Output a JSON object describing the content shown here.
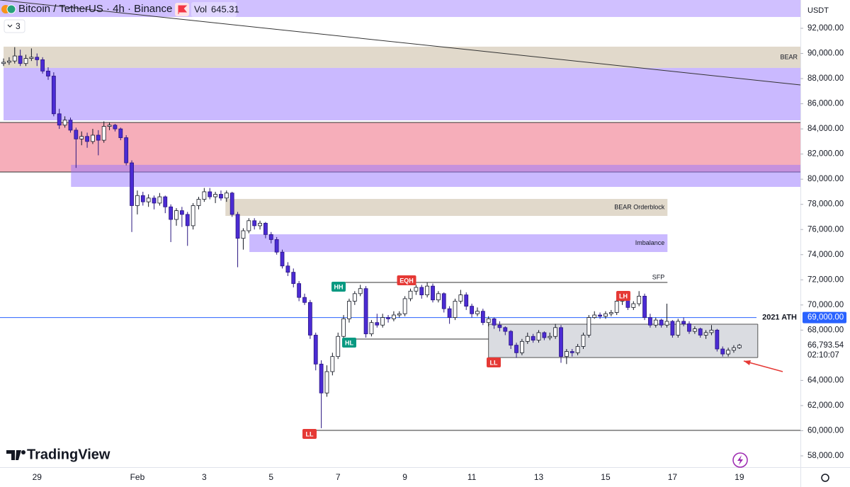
{
  "chart_data": {
    "type": "candlestick",
    "title": "Bitcoin / TetherUS · 4h · Binance",
    "volume_prefix": "Vol",
    "volume": 645.31,
    "indicator_count": 3,
    "currency": "USDT",
    "brand": "TradingView",
    "countdown": "02:10:07",
    "up_color": "#ffffff",
    "down_color": "#4b2bd4",
    "xlim": [
      -0.64,
      142.95
    ],
    "ylim": [
      57100,
      94250
    ],
    "xticks": [
      {
        "value": 6,
        "label": "29"
      },
      {
        "value": 24,
        "label": "Feb"
      },
      {
        "value": 36,
        "label": "3"
      },
      {
        "value": 48,
        "label": "5"
      },
      {
        "value": 60,
        "label": "7"
      },
      {
        "value": 72,
        "label": "9"
      },
      {
        "value": 84,
        "label": "11"
      },
      {
        "value": 96,
        "label": "13"
      },
      {
        "value": 108,
        "label": "15"
      },
      {
        "value": 120,
        "label": "17"
      },
      {
        "value": 132,
        "label": "19"
      }
    ],
    "yticks": [
      {
        "value": 58000,
        "label": "58,000.00"
      },
      {
        "value": 60000,
        "label": "60,000.00"
      },
      {
        "value": 62000,
        "label": "62,000.00"
      },
      {
        "value": 64000,
        "label": "64,000.00"
      },
      {
        "value": 68000,
        "label": "68,000.00"
      },
      {
        "value": 70000,
        "label": "70,000.00"
      },
      {
        "value": 72000,
        "label": "72,000.00"
      },
      {
        "value": 74000,
        "label": "74,000.00"
      },
      {
        "value": 76000,
        "label": "76,000.00"
      },
      {
        "value": 78000,
        "label": "78,000.00"
      },
      {
        "value": 80000,
        "label": "80,000.00"
      },
      {
        "value": 82000,
        "label": "82,000.00"
      },
      {
        "value": 84000,
        "label": "84,000.00"
      },
      {
        "value": 86000,
        "label": "86,000.00"
      },
      {
        "value": 88000,
        "label": "88,000.00"
      },
      {
        "value": 90000,
        "label": "90,000.00"
      },
      {
        "value": 92000,
        "label": "92,000.00"
      }
    ],
    "last_price": {
      "value": 66793.54,
      "label": "66,793.54"
    },
    "ath": {
      "value": 69000,
      "label": "69,000.00",
      "text": "2021 ATH",
      "color": "#2962ff"
    },
    "zones": [
      {
        "y": [
          92900,
          94250
        ],
        "x": [
          -0.64,
          142.95
        ],
        "color": "rgba(150,115,255,0.45)"
      },
      {
        "y": [
          88850,
          90540
        ],
        "x": [
          0,
          142.95
        ],
        "color": "rgba(200,185,160,0.55)",
        "label": "BEAR"
      },
      {
        "y": [
          84680,
          88850
        ],
        "x": [
          0,
          142.95
        ],
        "color": "rgba(150,115,255,0.5)"
      },
      {
        "y": [
          80570,
          84510
        ],
        "x": [
          -0.64,
          142.95
        ],
        "color": "rgba(240,120,140,0.6)",
        "border": "#333333"
      },
      {
        "y": [
          79390,
          81140
        ],
        "x": [
          12.1,
          142.95
        ],
        "color": "rgba(150,115,255,0.5)"
      },
      {
        "y": [
          77080,
          78430
        ],
        "x": [
          39.8,
          119.1
        ],
        "color": "rgba(200,185,160,0.55)",
        "label": "BEAR Orderblock"
      },
      {
        "y": [
          74210,
          75620
        ],
        "x": [
          44.1,
          119.1
        ],
        "color": "rgba(150,115,255,0.5)",
        "label": "Imbalance"
      },
      {
        "y": [
          65820,
          68470
        ],
        "x": [
          87,
          135.3
        ],
        "color": "rgba(150,155,170,0.35)",
        "border": "#555555"
      }
    ],
    "hlines": [
      {
        "value": 71790,
        "x": [
          61.2,
          119.1
        ],
        "label": "SFP"
      },
      {
        "value": 67290,
        "x": [
          61.2,
          87
        ]
      },
      {
        "value": 60030,
        "x": [
          54,
          142.95
        ]
      }
    ],
    "badges": [
      {
        "text": "HH",
        "color": "#089981"
      },
      {
        "text": "EQH",
        "color": "#e53935"
      },
      {
        "text": "HL",
        "color": "#089981"
      },
      {
        "text": "LL",
        "color": "#e53935"
      },
      {
        "text": "LH",
        "color": "#e53935"
      },
      {
        "text": "LL",
        "color": "#e53935"
      }
    ],
    "candles": [
      [
        89200,
        89600,
        89000,
        89300
      ],
      [
        89300,
        89700,
        89100,
        89400
      ],
      [
        89400,
        90500,
        89200,
        89800
      ],
      [
        89800,
        90300,
        89000,
        89200
      ],
      [
        89200,
        89900,
        89000,
        89600
      ],
      [
        89600,
        90400,
        89400,
        89700
      ],
      [
        89700,
        90000,
        89000,
        89500
      ],
      [
        89500,
        89700,
        88400,
        88600
      ],
      [
        88600,
        88900,
        87900,
        88200
      ],
      [
        88200,
        88500,
        85000,
        85200
      ],
      [
        85200,
        85600,
        84000,
        84300
      ],
      [
        84300,
        85000,
        84100,
        84700
      ],
      [
        84700,
        84900,
        83700,
        83900
      ],
      [
        83900,
        84100,
        80900,
        83200
      ],
      [
        83200,
        83800,
        82700,
        83400
      ],
      [
        83400,
        83700,
        82500,
        83000
      ],
      [
        83000,
        84000,
        82800,
        83500
      ],
      [
        83500,
        83900,
        81900,
        83100
      ],
      [
        83100,
        84600,
        82900,
        84200
      ],
      [
        84200,
        84500,
        83900,
        84300
      ],
      [
        84300,
        84400,
        83800,
        84000
      ],
      [
        84000,
        84100,
        83100,
        83300
      ],
      [
        83300,
        83500,
        81100,
        81300
      ],
      [
        81300,
        81500,
        75800,
        77900
      ],
      [
        77900,
        79100,
        77200,
        78700
      ],
      [
        78700,
        79000,
        77900,
        78200
      ],
      [
        78200,
        78800,
        77800,
        78500
      ],
      [
        78500,
        78700,
        77600,
        78100
      ],
      [
        78100,
        78900,
        77900,
        78600
      ],
      [
        78600,
        78700,
        77300,
        77800
      ],
      [
        77800,
        78000,
        75000,
        76800
      ],
      [
        76800,
        77700,
        76300,
        77500
      ],
      [
        77500,
        77800,
        76200,
        77200
      ],
      [
        77200,
        77400,
        74700,
        76300
      ],
      [
        76300,
        78100,
        76000,
        77900
      ],
      [
        77900,
        78600,
        77600,
        78400
      ],
      [
        78400,
        79300,
        78200,
        79000
      ],
      [
        79000,
        79300,
        78400,
        78600
      ],
      [
        78600,
        79000,
        78100,
        78800
      ],
      [
        78800,
        79100,
        78300,
        78500
      ],
      [
        78500,
        79100,
        78200,
        78900
      ],
      [
        78900,
        79000,
        77000,
        77200
      ],
      [
        77200,
        77400,
        73000,
        75300
      ],
      [
        75300,
        76100,
        74400,
        75900
      ],
      [
        75900,
        76900,
        75700,
        76700
      ],
      [
        76700,
        76900,
        76000,
        76300
      ],
      [
        76300,
        76700,
        76000,
        76500
      ],
      [
        76500,
        76600,
        75300,
        75600
      ],
      [
        75600,
        75800,
        74900,
        75200
      ],
      [
        75200,
        75400,
        74000,
        74200
      ],
      [
        74200,
        74400,
        72900,
        73100
      ],
      [
        73100,
        73400,
        72300,
        72600
      ],
      [
        72600,
        72900,
        71400,
        71700
      ],
      [
        71700,
        71900,
        70300,
        70600
      ],
      [
        70600,
        70900,
        70000,
        70200
      ],
      [
        70200,
        70400,
        67300,
        67600
      ],
      [
        67600,
        67800,
        64800,
        65300
      ],
      [
        65300,
        65600,
        60200,
        63000
      ],
      [
        63000,
        65200,
        62700,
        64700
      ],
      [
        64700,
        66200,
        64400,
        65900
      ],
      [
        65900,
        67800,
        65700,
        67500
      ],
      [
        67500,
        69200,
        67300,
        68900
      ],
      [
        68900,
        70500,
        68600,
        70300
      ],
      [
        70300,
        71100,
        70000,
        70900
      ],
      [
        70900,
        71600,
        70700,
        71300
      ],
      [
        71300,
        71500,
        67400,
        67700
      ],
      [
        67700,
        68800,
        67500,
        68600
      ],
      [
        68600,
        69300,
        68200,
        68400
      ],
      [
        68400,
        69300,
        68200,
        69000
      ],
      [
        69000,
        69200,
        68600,
        68900
      ],
      [
        68900,
        69500,
        68700,
        69200
      ],
      [
        69200,
        69500,
        69000,
        69300
      ],
      [
        69300,
        70700,
        69100,
        70500
      ],
      [
        70500,
        71300,
        70300,
        71100
      ],
      [
        71100,
        71600,
        70800,
        71400
      ],
      [
        71400,
        71600,
        70500,
        70800
      ],
      [
        70800,
        71800,
        70600,
        71500
      ],
      [
        71500,
        71700,
        70200,
        70400
      ],
      [
        70400,
        71100,
        70200,
        70900
      ],
      [
        70900,
        71000,
        69400,
        69700
      ],
      [
        69700,
        69900,
        68500,
        69000
      ],
      [
        69000,
        70500,
        68800,
        70300
      ],
      [
        70300,
        71200,
        70100,
        70800
      ],
      [
        70800,
        71000,
        69600,
        69900
      ],
      [
        69900,
        70100,
        69000,
        69300
      ],
      [
        69300,
        69800,
        69100,
        69500
      ],
      [
        69500,
        69700,
        68400,
        68600
      ],
      [
        68600,
        69100,
        68300,
        68900
      ],
      [
        68900,
        69000,
        68100,
        68400
      ],
      [
        68400,
        68700,
        67900,
        68200
      ],
      [
        68200,
        68300,
        67600,
        67900
      ],
      [
        67900,
        68000,
        66500,
        66800
      ],
      [
        66800,
        67000,
        65800,
        66200
      ],
      [
        66200,
        67300,
        66000,
        67100
      ],
      [
        67100,
        67800,
        66900,
        67500
      ],
      [
        67500,
        67700,
        67000,
        67200
      ],
      [
        67200,
        68000,
        67000,
        67800
      ],
      [
        67800,
        67900,
        67200,
        67400
      ],
      [
        67400,
        67800,
        67200,
        67500
      ],
      [
        67500,
        68500,
        67300,
        68200
      ],
      [
        68200,
        68400,
        65400,
        65900
      ],
      [
        65900,
        66500,
        65300,
        66300
      ],
      [
        66300,
        66500,
        65900,
        66200
      ],
      [
        66200,
        66900,
        66000,
        66700
      ],
      [
        66700,
        67800,
        66500,
        67600
      ],
      [
        67600,
        69200,
        67400,
        69000
      ],
      [
        69000,
        69500,
        68900,
        69200
      ],
      [
        69200,
        69400,
        68900,
        69100
      ],
      [
        69100,
        69500,
        68900,
        69300
      ],
      [
        69300,
        69600,
        69100,
        69400
      ],
      [
        69400,
        70700,
        69200,
        70300
      ],
      [
        70300,
        70600,
        70000,
        70400
      ],
      [
        70400,
        70500,
        69600,
        69800
      ],
      [
        69800,
        70300,
        69600,
        70100
      ],
      [
        70100,
        71100,
        69900,
        70700
      ],
      [
        70700,
        70900,
        68800,
        69000
      ],
      [
        69000,
        69300,
        68200,
        68400
      ],
      [
        68400,
        69000,
        68200,
        68800
      ],
      [
        68800,
        68900,
        68200,
        68400
      ],
      [
        68400,
        70100,
        68200,
        68700
      ],
      [
        68700,
        68800,
        67400,
        67600
      ],
      [
        67600,
        68900,
        67400,
        68700
      ],
      [
        68700,
        69000,
        68300,
        68500
      ],
      [
        68500,
        68700,
        67700,
        67900
      ],
      [
        67900,
        68300,
        67700,
        68100
      ],
      [
        68100,
        68200,
        67400,
        67600
      ],
      [
        67600,
        68000,
        67300,
        67800
      ],
      [
        67800,
        68400,
        67600,
        68000
      ],
      [
        68000,
        68100,
        66300,
        66500
      ],
      [
        66500,
        66700,
        65900,
        66100
      ],
      [
        66100,
        66600,
        65900,
        66400
      ],
      [
        66400,
        66800,
        66200,
        66600
      ],
      [
        66600,
        66900,
        66500,
        66793.54
      ]
    ]
  }
}
